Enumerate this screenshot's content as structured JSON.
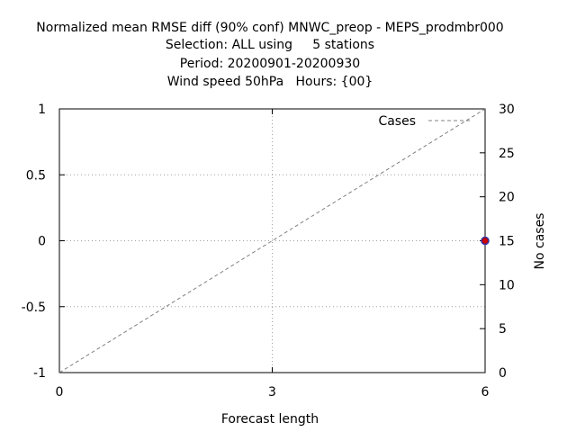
{
  "chart_data": {
    "type": "line",
    "title_lines": [
      "Normalized mean RMSE diff (90% conf) MNWC_preop - MEPS_prodmbr000",
      "Selection: ALL using     5 stations",
      "Period: 20200901-20200930",
      "Wind speed 50hPa   Hours: {00}"
    ],
    "xlabel": "Forecast length",
    "ylabel": "",
    "y2label": "No cases",
    "xlim": [
      0,
      6
    ],
    "ylim": [
      -1,
      1
    ],
    "y2lim": [
      0,
      30
    ],
    "x_ticks": [
      0,
      3,
      6
    ],
    "x_tick_labels": [
      "0",
      "3",
      "6"
    ],
    "y_ticks": [
      -1,
      -0.5,
      0,
      0.5,
      1
    ],
    "y_tick_labels": [
      "-1",
      "-0.5",
      "0",
      "0.5",
      "1"
    ],
    "y2_ticks": [
      0,
      5,
      10,
      15,
      20,
      25,
      30
    ],
    "y2_tick_labels": [
      "0",
      "5",
      "10",
      "15",
      "20",
      "25",
      "30"
    ],
    "grid": true,
    "legend_placement": "top-right",
    "series": [
      {
        "name": "Cases",
        "axis": "y2",
        "style": "dashed",
        "color": "#808080",
        "points": [
          [
            0,
            0
          ],
          [
            6,
            30
          ]
        ]
      },
      {
        "axis": "y",
        "style": "point",
        "color": "#cc0000",
        "edge_color": "#3030a0",
        "points": [
          [
            6,
            0
          ]
        ]
      }
    ]
  }
}
